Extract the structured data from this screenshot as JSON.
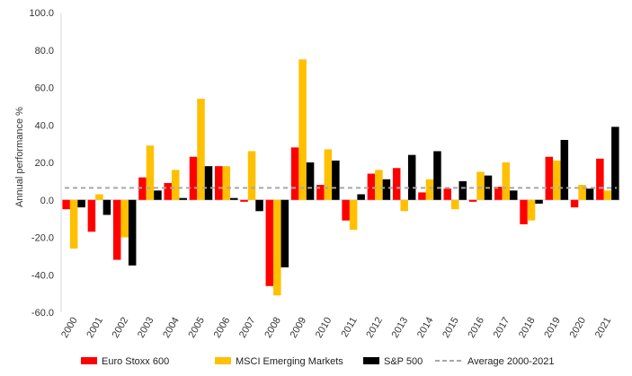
{
  "chart_data": {
    "type": "bar",
    "title": "",
    "xlabel": "",
    "ylabel": "Annual performance %",
    "ylim": [
      -60,
      100
    ],
    "yticks": [
      -60,
      -40,
      -20,
      0,
      20,
      40,
      60,
      80,
      100
    ],
    "ytick_labels": [
      "-60.0",
      "-40.0",
      "-20.0",
      "0.0",
      "20.0",
      "40.0",
      "60.0",
      "80.0",
      "100.0"
    ],
    "grid": false,
    "legend_position": "bottom",
    "categories": [
      "2000",
      "2001",
      "2002",
      "2003",
      "2004",
      "2005",
      "2006",
      "2007",
      "2008",
      "2009",
      "2010",
      "2011",
      "2012",
      "2013",
      "2014",
      "2015",
      "2016",
      "2017",
      "2018",
      "2019",
      "2020",
      "2021"
    ],
    "series": [
      {
        "name": "Euro Stoxx 600",
        "color": "#ff0000",
        "values": [
          -5,
          -17,
          -32,
          12,
          9,
          23,
          18,
          -1,
          -46,
          28,
          8,
          -11,
          14,
          17,
          4,
          6,
          -1,
          7,
          -13,
          23,
          -4,
          22
        ]
      },
      {
        "name": "MSCI Emerging Markets",
        "color": "#ffc000",
        "values": [
          -26,
          3,
          -20,
          29,
          16,
          54,
          18,
          26,
          -51,
          75,
          27,
          -16,
          16,
          -6,
          11,
          -5,
          15,
          20,
          -11,
          21,
          8,
          5
        ]
      },
      {
        "name": "S&P 500",
        "color": "#000000",
        "values": [
          -4,
          -8,
          -35,
          5,
          1,
          18,
          1,
          -6,
          -36,
          20,
          21,
          3,
          11,
          24,
          26,
          10,
          13,
          5,
          -2,
          32,
          6,
          39
        ]
      }
    ],
    "reference_line": {
      "name": "Average 2000-2021",
      "value": 6.4,
      "color": "#a6a6a6",
      "style": "dashed"
    }
  }
}
